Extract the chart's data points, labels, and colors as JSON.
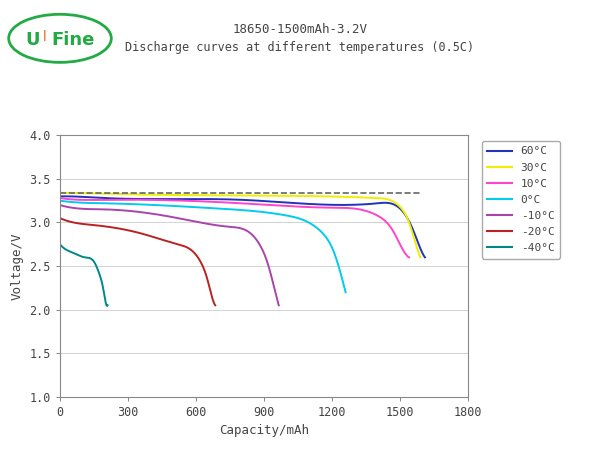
{
  "title1": "18650-1500mAh-3.2V",
  "title2": "Discharge curves at different temperatures (0.5C)",
  "xlabel": "Capacity/mAh",
  "ylabel": "Voltage/V",
  "xlim": [
    0,
    1800
  ],
  "ylim": [
    1.0,
    4.0
  ],
  "xticks": [
    0,
    300,
    600,
    900,
    1200,
    1500,
    1800
  ],
  "yticks": [
    1.0,
    1.5,
    2.0,
    2.5,
    3.0,
    3.5,
    4.0
  ],
  "bg_color": "#ffffff",
  "curves": [
    {
      "label": "60°C",
      "color": "#2233bb",
      "pts_x": [
        0,
        30,
        200,
        800,
        1400,
        1520,
        1560,
        1590,
        1610
      ],
      "pts_y": [
        3.3,
        3.3,
        3.28,
        3.26,
        3.22,
        3.1,
        2.9,
        2.7,
        2.6
      ]
    },
    {
      "label": "30°C",
      "color": "#eeee00",
      "pts_x": [
        0,
        30,
        200,
        800,
        1400,
        1500,
        1540,
        1570,
        1590
      ],
      "pts_y": [
        3.34,
        3.34,
        3.33,
        3.31,
        3.28,
        3.18,
        3.0,
        2.75,
        2.6
      ]
    },
    {
      "label": "10°C",
      "color": "#ff44cc",
      "pts_x": [
        0,
        30,
        200,
        800,
        1200,
        1400,
        1470,
        1510,
        1540
      ],
      "pts_y": [
        3.28,
        3.27,
        3.26,
        3.22,
        3.17,
        3.08,
        2.9,
        2.7,
        2.6
      ]
    },
    {
      "label": "0°C",
      "color": "#00ccee",
      "pts_x": [
        0,
        30,
        200,
        700,
        1000,
        1150,
        1210,
        1240,
        1260
      ],
      "pts_y": [
        3.25,
        3.24,
        3.22,
        3.16,
        3.08,
        2.9,
        2.65,
        2.4,
        2.2
      ]
    },
    {
      "label": "-10°C",
      "color": "#aa44aa",
      "pts_x": [
        0,
        30,
        200,
        500,
        750,
        880,
        920,
        950,
        965
      ],
      "pts_y": [
        3.2,
        3.18,
        3.15,
        3.06,
        2.95,
        2.75,
        2.5,
        2.2,
        2.05
      ]
    },
    {
      "label": "-20°C",
      "color": "#bb2222",
      "pts_x": [
        0,
        30,
        150,
        350,
        520,
        620,
        650,
        670,
        685
      ],
      "pts_y": [
        3.05,
        3.02,
        2.97,
        2.88,
        2.75,
        2.55,
        2.35,
        2.15,
        2.05
      ]
    },
    {
      "label": "-40°C",
      "color": "#008888",
      "pts_x": [
        0,
        20,
        60,
        110,
        150,
        175,
        190,
        200,
        210
      ],
      "pts_y": [
        2.75,
        2.7,
        2.65,
        2.6,
        2.55,
        2.4,
        2.25,
        2.1,
        2.05
      ]
    }
  ],
  "dashed_line": {
    "x": [
      0,
      1590
    ],
    "y": [
      3.335,
      3.335
    ],
    "color": "#666666",
    "linestyle": "--",
    "linewidth": 1.2
  },
  "legend_labels": [
    "60°C",
    "30°C",
    "10°C",
    "0°C",
    "-10°C",
    "-20°C",
    "-40°C"
  ],
  "legend_colors": [
    "#2233bb",
    "#eeee00",
    "#ff44cc",
    "#00ccee",
    "#aa44aa",
    "#bb2222",
    "#008888"
  ],
  "font_color": "#444444",
  "spine_color": "#888888",
  "grid_color": "#999999"
}
